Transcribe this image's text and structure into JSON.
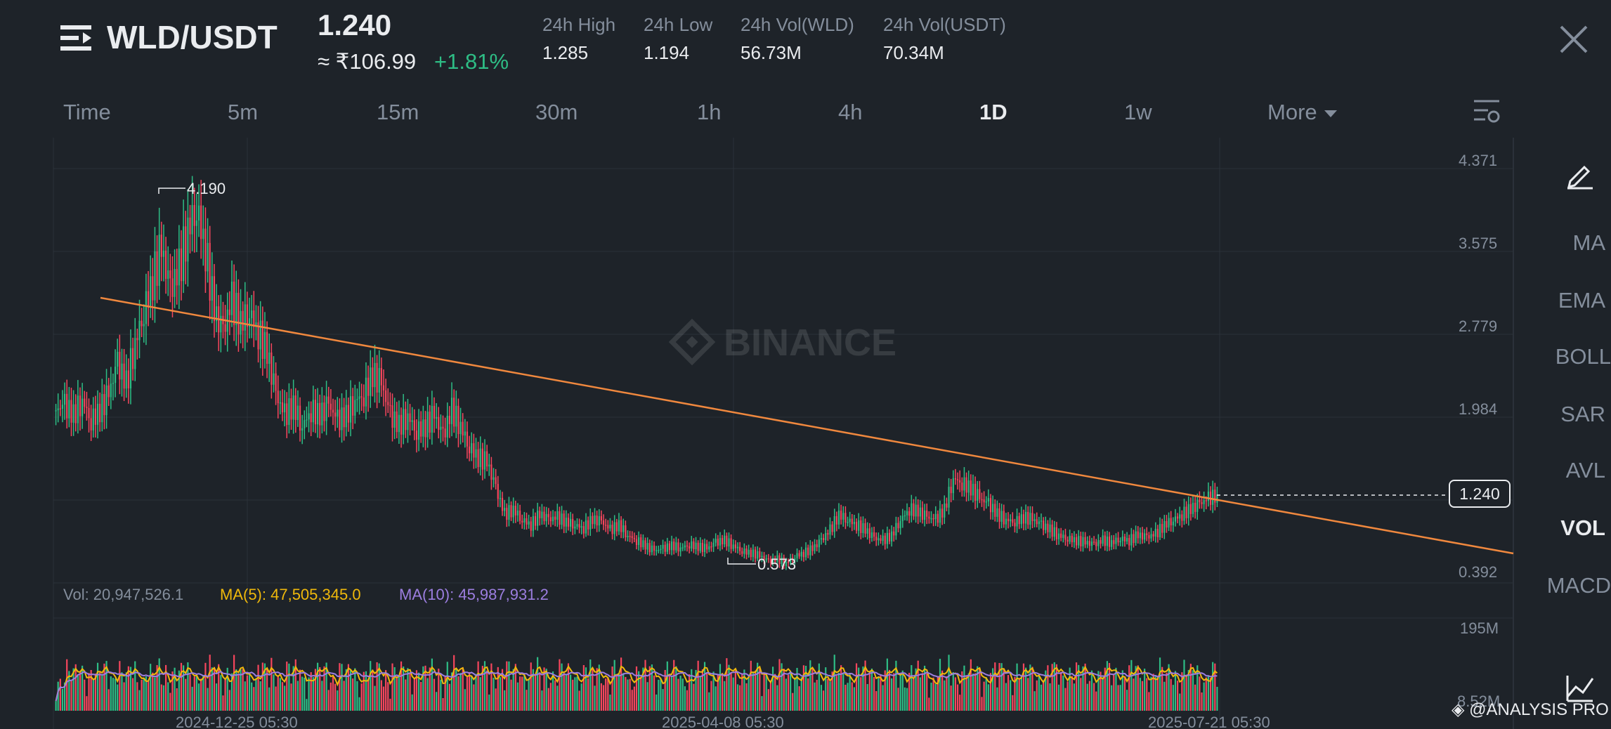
{
  "header": {
    "pair": "WLD/USDT",
    "price": "1.240",
    "fiat_price": "≈ ₹106.99",
    "change": "+1.81%",
    "stats": [
      {
        "label": "24h High",
        "value": "1.285"
      },
      {
        "label": "24h Low",
        "value": "1.194"
      },
      {
        "label": "24h Vol(WLD)",
        "value": "56.73M"
      },
      {
        "label": "24h Vol(USDT)",
        "value": "70.34M"
      }
    ]
  },
  "timeframes": [
    "Time",
    "5m",
    "15m",
    "30m",
    "1h",
    "4h",
    "1D",
    "1w",
    "More"
  ],
  "active_timeframe": "1D",
  "sidebar": {
    "items": [
      "MA",
      "EMA",
      "BOLL",
      "SAR",
      "AVL",
      "VOL",
      "MACD"
    ],
    "active": "VOL"
  },
  "watermark": "BINANCE",
  "volume_legend": {
    "vol": "Vol: 20,947,526.1",
    "ma5": "MA(5): 47,505,345.0",
    "ma10": "MA(10): 45,987,931.2"
  },
  "footer_brand": "@ANALYSIS PRO",
  "colors": {
    "up": "#2ebd85",
    "down": "#f6465d",
    "trendline": "#f0883e",
    "ma5": "#f0b90b",
    "ma10": "#9c7ee0",
    "background": "#1e2329"
  },
  "icons": [
    "menu-icon",
    "close-icon",
    "chart-settings-icon",
    "draw-icon",
    "indicator-icon",
    "binance-logo-icon"
  ],
  "chart_data": {
    "type": "candlestick",
    "price_axis_ticks": [
      "4.371",
      "3.575",
      "2.779",
      "1.984",
      "1.240",
      "0.392"
    ],
    "volume_axis_ticks": [
      "195M",
      "8.52M"
    ],
    "x_tick_labels": [
      "2024-12-25 05:30",
      "2025-04-08 05:30",
      "2025-07-21 05:30"
    ],
    "high_label": "4.190",
    "low_label": "0.573",
    "last_price": "1.240",
    "ylim": [
      0.392,
      4.371
    ],
    "close_series": [
      2.05,
      2.1,
      2.0,
      2.15,
      1.95,
      2.05,
      2.2,
      2.5,
      2.3,
      2.7,
      3.0,
      3.3,
      3.6,
      3.2,
      3.4,
      3.8,
      4.0,
      3.6,
      3.0,
      2.8,
      3.1,
      2.9,
      3.0,
      2.8,
      2.6,
      2.2,
      2.0,
      2.1,
      1.9,
      2.05,
      2.0,
      2.1,
      1.95,
      2.0,
      2.15,
      2.2,
      2.4,
      2.3,
      2.0,
      1.9,
      2.0,
      1.85,
      1.9,
      2.0,
      1.8,
      2.05,
      1.9,
      1.7,
      1.6,
      1.55,
      1.3,
      1.05,
      1.1,
      1.0,
      0.95,
      1.05,
      1.0,
      1.02,
      0.98,
      0.95,
      0.92,
      1.0,
      0.98,
      0.9,
      0.95,
      0.85,
      0.8,
      0.75,
      0.7,
      0.72,
      0.75,
      0.73,
      0.76,
      0.74,
      0.72,
      0.78,
      0.8,
      0.75,
      0.7,
      0.68,
      0.65,
      0.6,
      0.62,
      0.58,
      0.65,
      0.68,
      0.72,
      0.8,
      0.9,
      1.05,
      1.0,
      0.95,
      0.9,
      0.82,
      0.8,
      0.85,
      1.0,
      1.1,
      1.08,
      1.02,
      1.0,
      1.1,
      1.4,
      1.35,
      1.3,
      1.2,
      1.15,
      1.05,
      1.0,
      0.98,
      1.02,
      1.0,
      0.95,
      0.9,
      0.85,
      0.82,
      0.8,
      0.78,
      0.76,
      0.8,
      0.78,
      0.82,
      0.8,
      0.85,
      0.83,
      0.86,
      0.95,
      1.0,
      1.05,
      1.1,
      1.15,
      1.2,
      1.24
    ]
  }
}
